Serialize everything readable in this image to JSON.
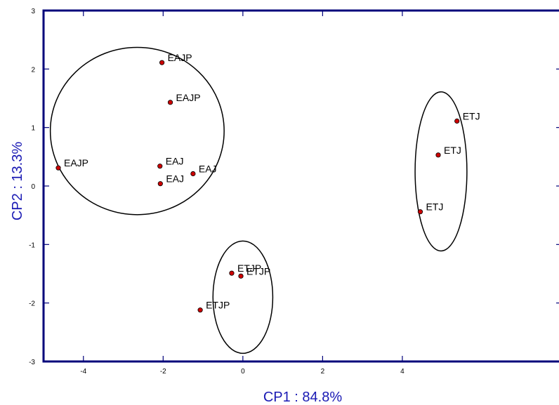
{
  "chart_data": {
    "type": "scatter",
    "title": "",
    "xlabel": "CP1 : 84.8%",
    "ylabel": "CP2 : 13.3%",
    "xlim": [
      -5.0,
      8.0
    ],
    "ylim": [
      -3,
      3
    ],
    "x_ticks": [
      -4,
      -2,
      0,
      2,
      4
    ],
    "x_tick_labels": [
      "-4",
      "-2",
      "0",
      "2",
      "4"
    ],
    "y_ticks": [
      -3,
      -2,
      -1,
      0,
      1,
      2,
      3
    ],
    "y_tick_labels": [
      "-3",
      "-2",
      "-1",
      "0",
      "1",
      "2",
      "3"
    ],
    "grid": false,
    "legend": "none",
    "points": [
      {
        "label": "EAJP",
        "x": -2.03,
        "y": 2.11
      },
      {
        "label": "EAJP",
        "x": -1.82,
        "y": 1.43
      },
      {
        "label": "EAJP",
        "x": -4.63,
        "y": 0.31
      },
      {
        "label": "EAJ",
        "x": -2.08,
        "y": 0.34
      },
      {
        "label": "EAJ",
        "x": -1.25,
        "y": 0.21
      },
      {
        "label": "EAJ",
        "x": -2.07,
        "y": 0.04
      },
      {
        "label": "ETJ",
        "x": 5.37,
        "y": 1.11
      },
      {
        "label": "ETJ",
        "x": 4.9,
        "y": 0.53
      },
      {
        "label": "ETJ",
        "x": 4.45,
        "y": -0.44
      },
      {
        "label": "ETJP",
        "x": -0.28,
        "y": -1.49
      },
      {
        "label": "ETJP",
        "x": -0.05,
        "y": -1.54
      },
      {
        "label": "ETJP",
        "x": -1.07,
        "y": -2.12
      }
    ],
    "ellipses": [
      {
        "cx": -2.65,
        "cy": 0.94,
        "rx": 2.18,
        "ry": 1.43
      },
      {
        "cx": 0.0,
        "cy": -1.9,
        "rx": 0.75,
        "ry": 0.96
      },
      {
        "cx": 4.97,
        "cy": 0.25,
        "rx": 0.65,
        "ry": 1.36
      }
    ],
    "colors": {
      "frame": "#00007a",
      "axis_title": "#1a1ab4",
      "marker_fill": "#cc0000",
      "marker_stroke": "#000000",
      "ellipse_stroke": "#000000"
    }
  }
}
